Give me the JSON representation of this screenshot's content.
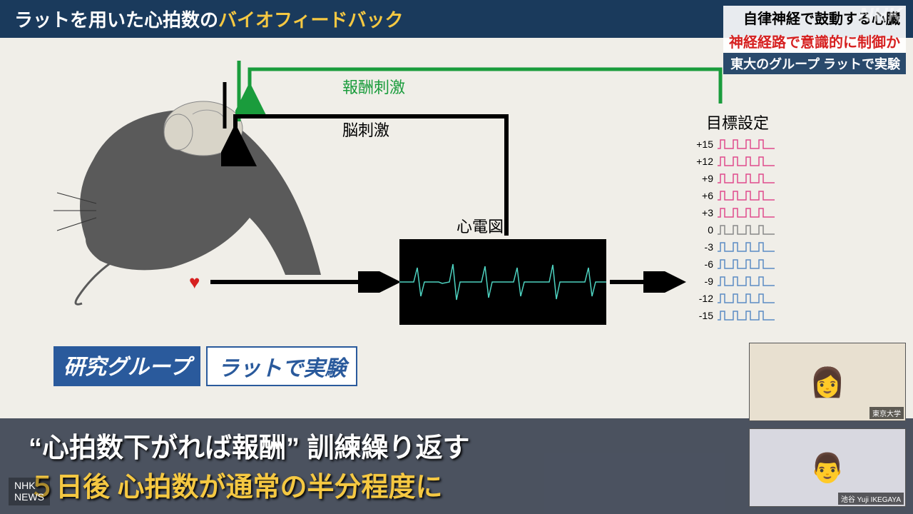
{
  "title": {
    "prefix": "ラットを用いた心拍数の",
    "highlight": "バイオフィードバック"
  },
  "watermark": "NHK",
  "news_logo": {
    "l1": "NHK",
    "l2": "NEWS"
  },
  "side_banner": {
    "line1": "自律神経で鼓動する心臓",
    "line2": "神経経路で意識的に制御か",
    "line3": "東大のグループ ラットで実験"
  },
  "diagram": {
    "reward_label": "報酬刺激",
    "reward_color": "#1a9c3c",
    "brain_label": "脳刺激",
    "ecg_label": "心電図",
    "target_label": "目標設定",
    "heart_color": "#d62020",
    "arrow_color": "#000000",
    "ecg_trace_color": "#4dd2c0",
    "target_levels": [
      "+15",
      "+12",
      "+9",
      "+6",
      "+3",
      "0",
      "-3",
      "-6",
      "-9",
      "-12",
      "-15"
    ],
    "pulse_colors": {
      "positive": "#e04a8c",
      "zero": "#888888",
      "negative": "#5a8cc4"
    }
  },
  "tags": {
    "t1": "研究グループ",
    "t2": "ラットで実験"
  },
  "caption": {
    "line1": "“心拍数下がれば報酬” 訓練繰り返す",
    "line2": "５日後 心拍数が通常の半分程度に"
  },
  "videocall": {
    "top_label": "東京大学",
    "bottom_label": "池谷 Yuji IKEGAYA"
  }
}
